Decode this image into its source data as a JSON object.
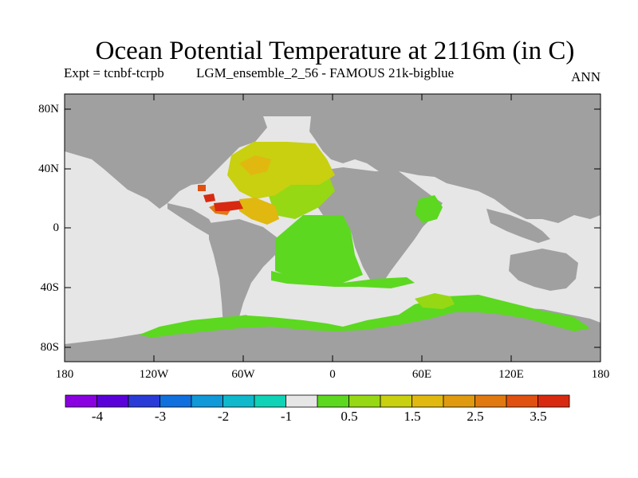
{
  "title": "Ocean Potential Temperature at 2116m (in C)",
  "experiment": "Expt = tcnbf-tcrpb",
  "run": "LGM_ensemble_2_56 - FAMOUS 21k-bigblue",
  "period": "ANN",
  "axes": {
    "lat_labels": [
      "80N",
      "40N",
      "0",
      "40S",
      "80S"
    ],
    "lon_labels": [
      "180",
      "120W",
      "60W",
      "0",
      "60E",
      "120E",
      "180"
    ]
  },
  "colorbar": {
    "labels": [
      "-4",
      "-3",
      "-2",
      "-1",
      "0.5",
      "1.5",
      "2.5",
      "3.5"
    ],
    "colors": [
      "#8a00e0",
      "#5a00d8",
      "#2a3ad6",
      "#1070dd",
      "#1098d8",
      "#10b8cc",
      "#10d2b6",
      "#e6e6e6",
      "#5cd820",
      "#96d814",
      "#c8d010",
      "#e0b810",
      "#e09a10",
      "#e07a10",
      "#e05010",
      "#d82a10"
    ]
  },
  "colors": {
    "land": "#a0a0a0",
    "ocean_background": "#e6e6e6"
  }
}
